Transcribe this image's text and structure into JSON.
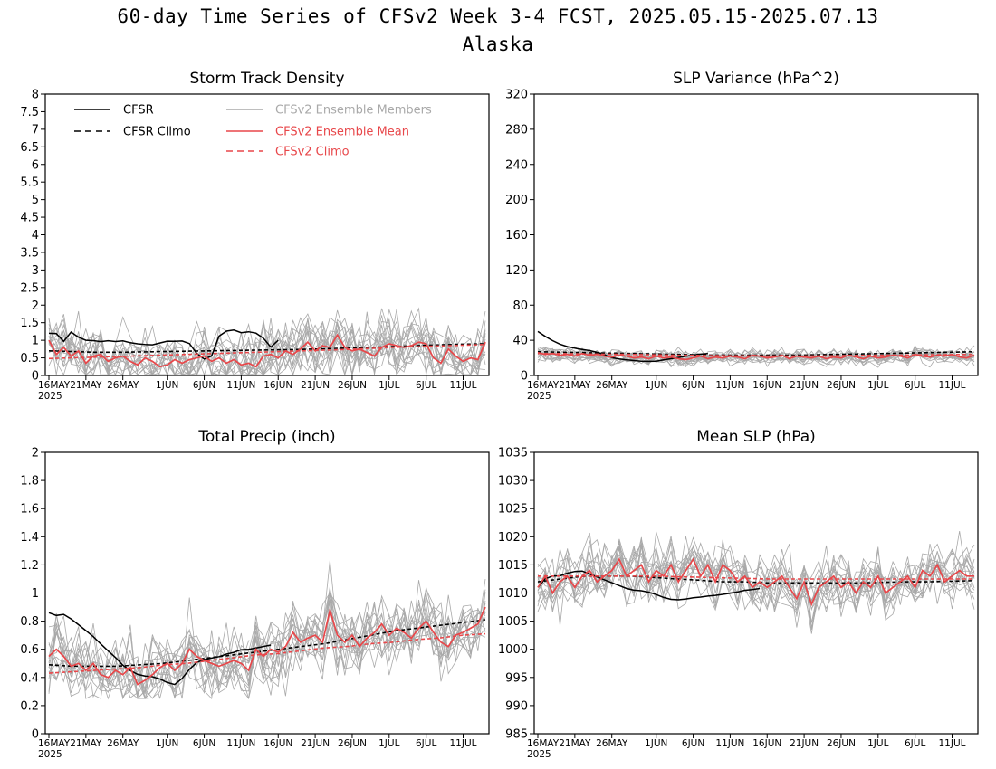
{
  "header": {
    "title": "60-day Time Series of CFSv2 Week 3-4 FCST, 2025.05.15-2025.07.13",
    "subtitle": "Alaska"
  },
  "colors": {
    "obs": "#000000",
    "members": "#a9a9a9",
    "mean": "#e8474a"
  },
  "x_ticks": {
    "labels": [
      "16MAY",
      "21MAY",
      "26MAY",
      "1JUN",
      "6JUN",
      "11JUN",
      "16JUN",
      "21JUN",
      "26JUN",
      "1JUL",
      "6JUL",
      "11JUL"
    ],
    "year_label": "2025"
  },
  "legend": {
    "cfsr": "CFSR",
    "cfsr_climo": "CFSR Climo",
    "members": "CFSv2 Ensemble Members",
    "mean": "CFSv2 Ensemble Mean",
    "cfsv2_climo": "CFSv2 Climo"
  },
  "chart_data": [
    {
      "type": "line",
      "title": "Storm Track Density",
      "x": "daily, 16MAY-13JUL 2025",
      "ylim": [
        0,
        8
      ],
      "yticks": [
        "0",
        "0.5",
        "1",
        "1.5",
        "2",
        "2.5",
        "3",
        "3.5",
        "4",
        "4.5",
        "5",
        "5.5",
        "6",
        "6.5",
        "7",
        "7.5",
        "8"
      ],
      "series": [
        {
          "name": "CFSR",
          "values": [
            1.2,
            1.2,
            0.95,
            1.25,
            1.1,
            1.0,
            1.0,
            0.95,
            1.0,
            0.95,
            1.0,
            0.95,
            0.9,
            0.9,
            0.85,
            0.9,
            0.95,
            1.0,
            0.95,
            1.0,
            0.85,
            0.5,
            0.45,
            0.6,
            1.3,
            1.25,
            1.3,
            1.2,
            1.25,
            1.2,
            1.05,
            0.8,
            1.0
          ]
        },
        {
          "name": "CFSR Climo",
          "values": [
            0.7,
            0.68,
            0.66,
            0.66,
            0.67,
            0.68,
            0.69,
            0.7,
            0.71,
            0.72,
            0.73,
            0.74,
            0.76,
            0.78,
            0.8,
            0.82,
            0.85,
            0.87,
            0.89,
            0.9
          ]
        },
        {
          "name": "CFSv2 Ensemble Mean",
          "values": [
            1.0,
            0.6,
            0.8,
            0.55,
            0.7,
            0.35,
            0.55,
            0.6,
            0.4,
            0.5,
            0.55,
            0.4,
            0.3,
            0.5,
            0.4,
            0.25,
            0.3,
            0.45,
            0.35,
            0.45,
            0.5,
            0.55,
            0.4,
            0.5,
            0.35,
            0.45,
            0.3,
            0.35,
            0.25,
            0.55,
            0.6,
            0.5,
            0.7,
            0.6,
            0.75,
            0.95,
            0.7,
            0.85,
            0.8,
            1.15,
            0.8,
            0.7,
            0.75,
            0.65,
            0.55,
            0.8,
            0.9,
            0.85,
            0.8,
            0.85,
            0.95,
            0.9,
            0.5,
            0.35,
            0.75,
            0.55,
            0.4,
            0.5,
            0.45,
            0.95
          ]
        },
        {
          "name": "CFSv2 Climo",
          "values": [
            0.48,
            0.5,
            0.52,
            0.54,
            0.56,
            0.58,
            0.6,
            0.62,
            0.64,
            0.66,
            0.68,
            0.7,
            0.72,
            0.74,
            0.77,
            0.8,
            0.82,
            0.84,
            0.86,
            0.88
          ]
        }
      ]
    },
    {
      "type": "line",
      "title": "SLP Variance (hPa^2)",
      "x": "daily, 16MAY-13JUL 2025",
      "ylim": [
        0,
        320
      ],
      "yticks": [
        "0",
        "40",
        "80",
        "120",
        "160",
        "200",
        "240",
        "280",
        "320"
      ],
      "series": [
        {
          "name": "CFSR",
          "values": [
            50,
            42,
            36,
            32,
            30,
            28,
            25,
            20,
            18,
            17,
            16,
            16,
            18,
            20,
            22,
            24,
            25
          ]
        },
        {
          "name": "CFSR Climo",
          "values": [
            27,
            26.5,
            26,
            25.5,
            25,
            24.5,
            24,
            23.5,
            23,
            23,
            23,
            23,
            23.5,
            24,
            24.5,
            25,
            25.5,
            26,
            26.5,
            27
          ]
        },
        {
          "name": "CFSv2 Ensemble Mean",
          "values": [
            26,
            24,
            25,
            23,
            24,
            22,
            25,
            23,
            24,
            22,
            21,
            23,
            22,
            20,
            21,
            19,
            22,
            20,
            21,
            19,
            18,
            20,
            22,
            19,
            21,
            20,
            22,
            21,
            19,
            23,
            22,
            20,
            21,
            23,
            19,
            22,
            21,
            20,
            22,
            19,
            21,
            20,
            23,
            21,
            19,
            22,
            20,
            21,
            23,
            22,
            20,
            24,
            22,
            21,
            23,
            22,
            24,
            21,
            20,
            23
          ]
        },
        {
          "name": "CFSv2 Climo",
          "values": [
            25,
            24.8,
            24.5,
            24.2,
            24,
            23.5,
            23,
            22.8,
            22.5,
            22.3,
            22,
            22,
            22.2,
            22.5,
            22.8,
            23,
            23.2,
            23.5,
            23.8,
            24
          ]
        }
      ]
    },
    {
      "type": "line",
      "title": "Total Precip (inch)",
      "x": "daily, 16MAY-13JUL 2025",
      "ylim": [
        0,
        2
      ],
      "yticks": [
        "0",
        "0.2",
        "0.4",
        "0.6",
        "0.8",
        "1",
        "1.2",
        "1.4",
        "1.6",
        "1.8",
        "2"
      ],
      "series": [
        {
          "name": "CFSR",
          "values": [
            0.86,
            0.84,
            0.85,
            0.82,
            0.78,
            0.74,
            0.7,
            0.65,
            0.6,
            0.56,
            0.5,
            0.46,
            0.43,
            0.41,
            0.41,
            0.4,
            0.38,
            0.35,
            0.35,
            0.42,
            0.48,
            0.52,
            0.53,
            0.54,
            0.55,
            0.57,
            0.58,
            0.6,
            0.6,
            0.61,
            0.62,
            0.63
          ]
        },
        {
          "name": "CFSR Climo",
          "values": [
            0.49,
            0.48,
            0.48,
            0.48,
            0.49,
            0.5,
            0.52,
            0.54,
            0.56,
            0.58,
            0.6,
            0.62,
            0.64,
            0.67,
            0.7,
            0.73,
            0.75,
            0.77,
            0.79,
            0.81
          ]
        },
        {
          "name": "CFSv2 Ensemble Mean",
          "values": [
            0.55,
            0.6,
            0.55,
            0.48,
            0.5,
            0.45,
            0.5,
            0.42,
            0.4,
            0.45,
            0.42,
            0.47,
            0.35,
            0.38,
            0.42,
            0.47,
            0.5,
            0.45,
            0.5,
            0.6,
            0.55,
            0.52,
            0.5,
            0.48,
            0.5,
            0.52,
            0.5,
            0.45,
            0.6,
            0.55,
            0.6,
            0.58,
            0.62,
            0.72,
            0.65,
            0.68,
            0.7,
            0.65,
            0.88,
            0.7,
            0.65,
            0.7,
            0.62,
            0.68,
            0.72,
            0.78,
            0.7,
            0.75,
            0.72,
            0.68,
            0.75,
            0.8,
            0.72,
            0.65,
            0.62,
            0.7,
            0.72,
            0.75,
            0.78,
            0.9
          ]
        },
        {
          "name": "CFSv2 Climo",
          "values": [
            0.43,
            0.44,
            0.45,
            0.46,
            0.47,
            0.49,
            0.5,
            0.52,
            0.54,
            0.56,
            0.57,
            0.59,
            0.61,
            0.62,
            0.64,
            0.65,
            0.67,
            0.68,
            0.7,
            0.71
          ]
        }
      ]
    },
    {
      "type": "line",
      "title": "Mean SLP (hPa)",
      "x": "daily, 16MAY-13JUL 2025",
      "ylim": [
        985,
        1035
      ],
      "yticks": [
        "985",
        "990",
        "995",
        "1000",
        "1005",
        "1010",
        "1015",
        "1020",
        "1025",
        "1030",
        "1035"
      ],
      "series": [
        {
          "name": "CFSR",
          "values": [
            1011,
            1012.5,
            1013,
            1013,
            1013.5,
            1013.8,
            1014,
            1013.5,
            1013,
            1012.5,
            1012,
            1011.5,
            1011,
            1010.5,
            1010.5,
            1010.3,
            1010,
            1009.5,
            1009,
            1008.8,
            1008.8,
            1009,
            1009.2,
            1009.3,
            1009.5,
            1009.6,
            1009.8,
            1010,
            1010.2,
            1010.5,
            1010.6,
            1010.8
          ]
        },
        {
          "name": "CFSR Climo",
          "values": [
            1012,
            1012.5,
            1013,
            1013,
            1013,
            1012.8,
            1012.5,
            1012.3,
            1012,
            1012,
            1011.8,
            1011.8,
            1011.8,
            1011.8,
            1011.8,
            1011.9,
            1012,
            1012,
            1012.1,
            1012.2
          ]
        },
        {
          "name": "CFSv2 Ensemble Mean",
          "values": [
            1011,
            1013,
            1010,
            1012,
            1013,
            1011,
            1013,
            1014,
            1012,
            1013,
            1014,
            1016,
            1013,
            1014,
            1015,
            1012,
            1014,
            1013,
            1015,
            1012,
            1014,
            1016,
            1013,
            1015,
            1012,
            1015,
            1014,
            1012,
            1013,
            1011,
            1012,
            1011,
            1012,
            1013,
            1011,
            1009,
            1012,
            1008,
            1011,
            1012,
            1013,
            1011,
            1012,
            1010,
            1012,
            1011,
            1013,
            1010,
            1011,
            1012,
            1013,
            1011,
            1014,
            1013,
            1015,
            1012,
            1013,
            1014,
            1013,
            1013
          ]
        },
        {
          "name": "CFSv2 Climo",
          "values": [
            1013,
            1013,
            1013,
            1013,
            1013,
            1013,
            1012.9,
            1012.8,
            1012.7,
            1012.6,
            1012.5,
            1012.5,
            1012.5,
            1012.5,
            1012.5,
            1012.5,
            1012.5,
            1012.5,
            1012.5,
            1012.5
          ]
        }
      ]
    }
  ]
}
